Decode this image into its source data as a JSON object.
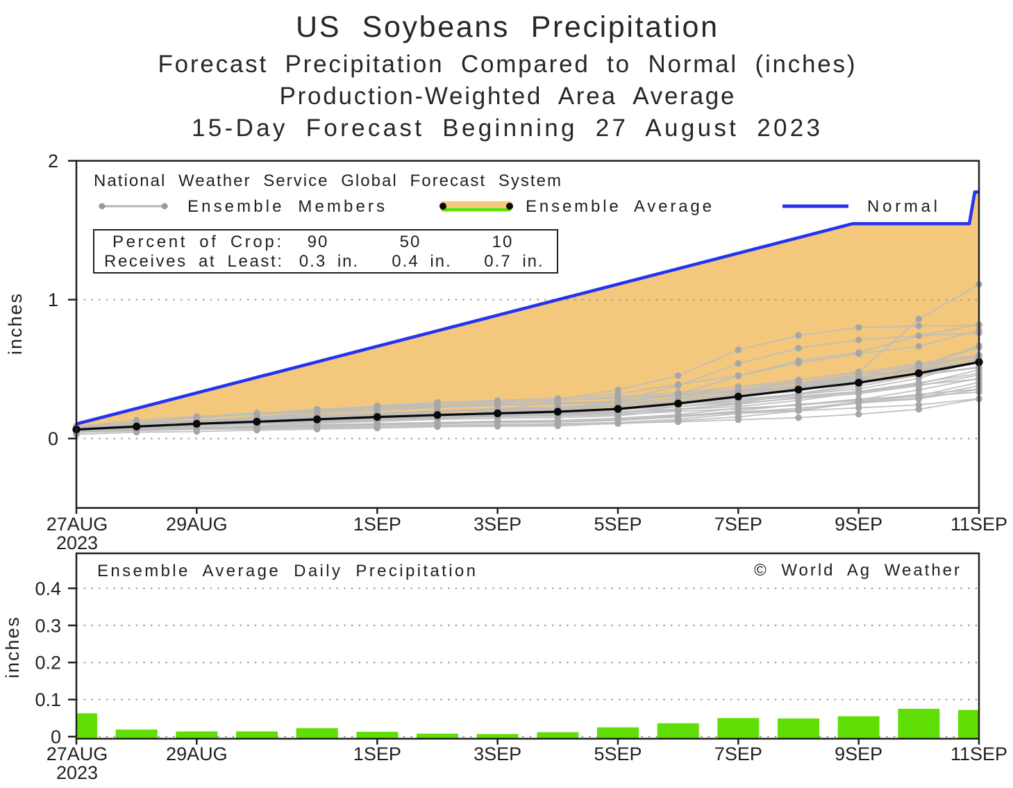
{
  "page": {
    "background": "#ffffff",
    "text_color": "#1f1f1f"
  },
  "title": {
    "line1": "US Soybeans Precipitation",
    "line2": "Forecast Precipitation Compared to Normal (inches)",
    "line3": "Production-Weighted Area Average",
    "line4": "15-Day Forecast Beginning 27 August 2023"
  },
  "legend": {
    "source_line": "National Weather Service Global Forecast System",
    "ensemble_members_label": "Ensemble Members",
    "ensemble_average_label": "Ensemble Average",
    "normal_label": "Normal"
  },
  "info_box": {
    "row1_label": "Percent of Crop:",
    "row1_values": [
      "90",
      "50",
      "10"
    ],
    "row2_label": "Receives at Least:",
    "row2_values": [
      "0.3 in.",
      "0.4 in.",
      "0.7 in."
    ]
  },
  "panel2": {
    "label": "Ensemble Average Daily Precipitation",
    "credit": "© World Ag Weather"
  },
  "colors": {
    "normal_line": "#2434ee",
    "fill_above_average": "#f3c77c",
    "ensemble_member_line": "#bdbdbd",
    "ensemble_member_dot": "#a6a6a6",
    "ensemble_average_line": "#0a0a0a",
    "bar_green": "#5fdf06",
    "grid_dots": "#999999",
    "axis": "#1f1f1f"
  },
  "chart_data": [
    {
      "type": "line",
      "title": "Forecast Precipitation Compared to Normal (inches) - cumulative 15-day",
      "ylabel": "inches",
      "ylim": [
        -0.5,
        2.0
      ],
      "yticks": [
        0,
        1,
        2
      ],
      "grid": "dotted horizontal at 0 and 1",
      "legend_position": "top-left inside",
      "x_unit": "forecast day index (0 = 27AUG2023, 15 = 11SEP2023)",
      "x_range": [
        0,
        15
      ],
      "xtick_labels": [
        {
          "day": 0,
          "label": "27AUG",
          "sub": "2023"
        },
        {
          "day": 2,
          "label": "29AUG"
        },
        {
          "day": 5,
          "label": "1SEP"
        },
        {
          "day": 7,
          "label": "3SEP"
        },
        {
          "day": 9,
          "label": "5SEP"
        },
        {
          "day": 11,
          "label": "7SEP"
        },
        {
          "day": 13,
          "label": "9SEP"
        },
        {
          "day": 15,
          "label": "11SEP"
        }
      ],
      "series": [
        {
          "name": "Normal",
          "type": "line",
          "color": "#2434ee",
          "points_day_value": [
            [
              0,
              0.105
            ],
            [
              12.9,
              1.547
            ],
            [
              14.84,
              1.547
            ],
            [
              14.93,
              1.775
            ],
            [
              15,
              1.775
            ]
          ]
        },
        {
          "name": "Ensemble Average",
          "type": "line+dots",
          "color": "#0a0a0a",
          "values": [
            0.065,
            0.086,
            0.106,
            0.121,
            0.138,
            0.155,
            0.169,
            0.181,
            0.193,
            0.213,
            0.252,
            0.302,
            0.352,
            0.402,
            0.47,
            0.55
          ]
        },
        {
          "name": "Ensemble Members",
          "type": "multi-line+dots",
          "color": "#bdbdbd",
          "members": [
            [
              0.07,
              0.085,
              0.1,
              0.115,
              0.13,
              0.15,
              0.17,
              0.195,
              0.28,
              0.35,
              0.452,
              0.638,
              0.742,
              0.8,
              0.81,
              0.815
            ],
            [
              0.065,
              0.082,
              0.1,
              0.112,
              0.125,
              0.14,
              0.16,
              0.18,
              0.215,
              0.27,
              0.38,
              0.54,
              0.65,
              0.71,
              0.74,
              0.82
            ],
            [
              0.06,
              0.078,
              0.092,
              0.105,
              0.118,
              0.13,
              0.145,
              0.16,
              0.18,
              0.205,
              0.245,
              0.33,
              0.42,
              0.48,
              0.86,
              1.11
            ],
            [
              0.062,
              0.08,
              0.095,
              0.108,
              0.122,
              0.138,
              0.155,
              0.172,
              0.21,
              0.26,
              0.32,
              0.45,
              0.56,
              0.62,
              0.74,
              0.76
            ],
            [
              0.085,
              0.105,
              0.128,
              0.152,
              0.19,
              0.235,
              0.25,
              0.258,
              0.273,
              0.3,
              0.33,
              0.372,
              0.422,
              0.472,
              0.54,
              0.6
            ],
            [
              0.03,
              0.045,
              0.05,
              0.06,
              0.068,
              0.075,
              0.085,
              0.088,
              0.09,
              0.11,
              0.12,
              0.135,
              0.15,
              0.175,
              0.21,
              0.285
            ],
            [
              0.044,
              0.08,
              0.1,
              0.11,
              0.121,
              0.139,
              0.152,
              0.157,
              0.162,
              0.173,
              0.195,
              0.213,
              0.243,
              0.284,
              0.304,
              0.334
            ],
            [
              0.044,
              0.055,
              0.071,
              0.08,
              0.092,
              0.099,
              0.106,
              0.115,
              0.119,
              0.13,
              0.155,
              0.188,
              0.205,
              0.255,
              0.285,
              0.354
            ],
            [
              0.052,
              0.057,
              0.066,
              0.07,
              0.077,
              0.08,
              0.087,
              0.095,
              0.098,
              0.107,
              0.127,
              0.156,
              0.199,
              0.221,
              0.242,
              0.287
            ],
            [
              0.047,
              0.078,
              0.092,
              0.108,
              0.125,
              0.146,
              0.156,
              0.168,
              0.177,
              0.183,
              0.21,
              0.23,
              0.274,
              0.332,
              0.387,
              0.428
            ],
            [
              0.054,
              0.06,
              0.073,
              0.083,
              0.091,
              0.101,
              0.106,
              0.115,
              0.12,
              0.131,
              0.159,
              0.199,
              0.247,
              0.27,
              0.318,
              0.355
            ],
            [
              0.054,
              0.062,
              0.071,
              0.077,
              0.084,
              0.09,
              0.095,
              0.102,
              0.107,
              0.115,
              0.138,
              0.18,
              0.201,
              0.26,
              0.292,
              0.381
            ],
            [
              0.052,
              0.061,
              0.074,
              0.081,
              0.093,
              0.107,
              0.116,
              0.122,
              0.13,
              0.137,
              0.166,
              0.189,
              0.217,
              0.261,
              0.309,
              0.404
            ],
            [
              0.058,
              0.072,
              0.081,
              0.091,
              0.1,
              0.106,
              0.114,
              0.125,
              0.13,
              0.146,
              0.172,
              0.219,
              0.239,
              0.278,
              0.35,
              0.434
            ],
            [
              0.055,
              0.104,
              0.154,
              0.174,
              0.198,
              0.218,
              0.237,
              0.247,
              0.257,
              0.268,
              0.316,
              0.35,
              0.403,
              0.458,
              0.49,
              0.548
            ],
            [
              0.061,
              0.105,
              0.13,
              0.155,
              0.171,
              0.201,
              0.224,
              0.24,
              0.251,
              0.267,
              0.308,
              0.347,
              0.38,
              0.456,
              0.529,
              0.586
            ],
            [
              0.059,
              0.099,
              0.123,
              0.152,
              0.187,
              0.212,
              0.225,
              0.243,
              0.248,
              0.267,
              0.314,
              0.372,
              0.399,
              0.44,
              0.493,
              0.555
            ],
            [
              0.06,
              0.068,
              0.081,
              0.093,
              0.11,
              0.123,
              0.138,
              0.146,
              0.15,
              0.164,
              0.206,
              0.253,
              0.29,
              0.323,
              0.38,
              0.457
            ],
            [
              0.066,
              0.087,
              0.118,
              0.134,
              0.148,
              0.159,
              0.178,
              0.188,
              0.194,
              0.206,
              0.231,
              0.257,
              0.319,
              0.376,
              0.455,
              0.51
            ],
            [
              0.071,
              0.098,
              0.115,
              0.136,
              0.154,
              0.17,
              0.191,
              0.208,
              0.214,
              0.231,
              0.268,
              0.306,
              0.367,
              0.41,
              0.465,
              0.546
            ],
            [
              0.066,
              0.08,
              0.097,
              0.112,
              0.128,
              0.137,
              0.147,
              0.16,
              0.167,
              0.183,
              0.23,
              0.27,
              0.304,
              0.339,
              0.402,
              0.469
            ],
            [
              0.068,
              0.086,
              0.111,
              0.12,
              0.139,
              0.159,
              0.169,
              0.177,
              0.182,
              0.203,
              0.251,
              0.286,
              0.317,
              0.357,
              0.433,
              0.566
            ],
            [
              0.074,
              0.111,
              0.155,
              0.184,
              0.201,
              0.221,
              0.233,
              0.241,
              0.249,
              0.26,
              0.284,
              0.315,
              0.386,
              0.421,
              0.52,
              0.657
            ],
            [
              0.079,
              0.091,
              0.109,
              0.122,
              0.143,
              0.159,
              0.166,
              0.173,
              0.177,
              0.192,
              0.213,
              0.246,
              0.295,
              0.338,
              0.394,
              0.494
            ],
            [
              0.077,
              0.088,
              0.111,
              0.127,
              0.154,
              0.166,
              0.174,
              0.189,
              0.199,
              0.211,
              0.244,
              0.296,
              0.355,
              0.407,
              0.499,
              0.572
            ],
            [
              0.078,
              0.118,
              0.148,
              0.18,
              0.211,
              0.227,
              0.247,
              0.267,
              0.275,
              0.291,
              0.315,
              0.341,
              0.374,
              0.43,
              0.519,
              0.668
            ],
            [
              0.086,
              0.095,
              0.115,
              0.129,
              0.151,
              0.173,
              0.193,
              0.201,
              0.208,
              0.231,
              0.26,
              0.31,
              0.34,
              0.427,
              0.511,
              0.596
            ],
            [
              0.078,
              0.1,
              0.122,
              0.137,
              0.151,
              0.178,
              0.199,
              0.216,
              0.225,
              0.244,
              0.268,
              0.314,
              0.381,
              0.437,
              0.507,
              0.599
            ],
            [
              0.089,
              0.098,
              0.117,
              0.123,
              0.133,
              0.151,
              0.163,
              0.178,
              0.188,
              0.206,
              0.25,
              0.274,
              0.323,
              0.394,
              0.459,
              0.515
            ],
            [
              0.085,
              0.103,
              0.129,
              0.145,
              0.162,
              0.182,
              0.198,
              0.212,
              0.219,
              0.242,
              0.294,
              0.335,
              0.368,
              0.418,
              0.462,
              0.564
            ],
            [
              0.085,
              0.132,
              0.159,
              0.174,
              0.201,
              0.233,
              0.26,
              0.274,
              0.289,
              0.321,
              0.389,
              0.453,
              0.544,
              0.611,
              0.664,
              0.779
            ]
          ]
        }
      ],
      "fill_between": {
        "upper": "Normal",
        "lower": "Ensemble Average",
        "color": "#f3c77c"
      }
    },
    {
      "type": "bar",
      "title": "Ensemble Average Daily Precipitation",
      "ylabel": "inches",
      "ylim": [
        0,
        0.5
      ],
      "yticks": [
        0,
        0.1,
        0.2,
        0.3,
        0.4
      ],
      "grid": "dotted horizontal at 0.1-0.4",
      "bar_color": "#5fdf06",
      "x_range": [
        0,
        15
      ],
      "xtick_labels": [
        {
          "day": 0,
          "label": "27AUG",
          "sub": "2023"
        },
        {
          "day": 2,
          "label": "29AUG"
        },
        {
          "day": 5,
          "label": "1SEP"
        },
        {
          "day": 7,
          "label": "3SEP"
        },
        {
          "day": 9,
          "label": "5SEP"
        },
        {
          "day": 11,
          "label": "7SEP"
        },
        {
          "day": 13,
          "label": "9SEP"
        },
        {
          "day": 15,
          "label": "11SEP"
        }
      ],
      "values": [
        0.063,
        0.019,
        0.014,
        0.014,
        0.023,
        0.013,
        0.008,
        0.007,
        0.012,
        0.025,
        0.036,
        0.05,
        0.049,
        0.055,
        0.075,
        0.072
      ]
    }
  ]
}
